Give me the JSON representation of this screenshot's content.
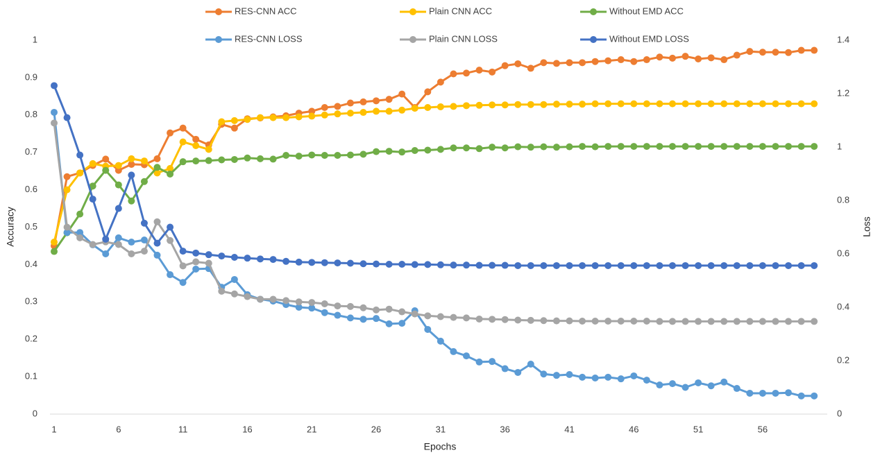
{
  "chart_data": {
    "type": "line",
    "xlabel": "Epochs",
    "ylabel": "Accuracy",
    "y2label": "Loss",
    "x": [
      1,
      2,
      3,
      4,
      5,
      6,
      7,
      8,
      9,
      10,
      11,
      12,
      13,
      14,
      15,
      16,
      17,
      18,
      19,
      20,
      21,
      22,
      23,
      24,
      25,
      26,
      27,
      28,
      29,
      30,
      31,
      32,
      33,
      34,
      35,
      36,
      37,
      38,
      39,
      40,
      41,
      42,
      43,
      44,
      45,
      46,
      47,
      48,
      49,
      50,
      51,
      52,
      53,
      54,
      55,
      56,
      57,
      58,
      59,
      60
    ],
    "xlim": [
      1,
      60.8
    ],
    "xticks": [
      1,
      6,
      11,
      16,
      21,
      26,
      31,
      36,
      41,
      46,
      51,
      56
    ],
    "ylim": [
      0,
      1
    ],
    "yticks": [
      0,
      0.1,
      0.2,
      0.3,
      0.4,
      0.5,
      0.6,
      0.7,
      0.8,
      0.9,
      1
    ],
    "y2lim": [
      0,
      1.4
    ],
    "y2ticks": [
      0,
      0.2,
      0.4,
      0.6,
      0.8,
      1,
      1.2,
      1.4
    ],
    "grid": false,
    "legend": "top",
    "series": [
      {
        "name": "RES-CNN ACC",
        "color": "#ED7D31",
        "values": [
          0.45,
          0.635,
          0.645,
          0.665,
          0.682,
          0.652,
          0.668,
          0.667,
          0.683,
          0.752,
          0.765,
          0.735,
          0.72,
          0.775,
          0.765,
          0.79,
          0.792,
          0.795,
          0.798,
          0.805,
          0.81,
          0.82,
          0.823,
          0.832,
          0.835,
          0.838,
          0.842,
          0.856,
          0.82,
          0.862,
          0.888,
          0.91,
          0.912,
          0.92,
          0.915,
          0.932,
          0.937,
          0.925,
          0.94,
          0.938,
          0.94,
          0.94,
          0.943,
          0.945,
          0.948,
          0.943,
          0.948,
          0.955,
          0.952,
          0.957,
          0.95,
          0.953,
          0.948,
          0.96,
          0.97,
          0.968,
          0.968,
          0.967,
          0.973,
          0.973
        ]
      },
      {
        "name": "Plain CNN ACC",
        "color": "#FFC000",
        "values": [
          0.46,
          0.6,
          0.645,
          0.67,
          0.663,
          0.665,
          0.683,
          0.677,
          0.645,
          0.657,
          0.728,
          0.718,
          0.708,
          0.782,
          0.785,
          0.788,
          0.793,
          0.793,
          0.793,
          0.795,
          0.797,
          0.8,
          0.803,
          0.805,
          0.807,
          0.81,
          0.81,
          0.813,
          0.818,
          0.82,
          0.822,
          0.823,
          0.825,
          0.826,
          0.827,
          0.827,
          0.828,
          0.828,
          0.828,
          0.829,
          0.829,
          0.829,
          0.83,
          0.83,
          0.83,
          0.83,
          0.83,
          0.83,
          0.83,
          0.83,
          0.83,
          0.83,
          0.83,
          0.83,
          0.83,
          0.83,
          0.83,
          0.83,
          0.83,
          0.83
        ]
      },
      {
        "name": "Without EMD ACC",
        "color": "#70AD47",
        "values": [
          0.435,
          0.485,
          0.535,
          0.61,
          0.652,
          0.613,
          0.57,
          0.622,
          0.66,
          0.642,
          0.675,
          0.677,
          0.678,
          0.68,
          0.681,
          0.685,
          0.683,
          0.682,
          0.692,
          0.69,
          0.693,
          0.692,
          0.692,
          0.693,
          0.695,
          0.702,
          0.703,
          0.701,
          0.705,
          0.706,
          0.708,
          0.712,
          0.712,
          0.71,
          0.714,
          0.712,
          0.715,
          0.714,
          0.715,
          0.714,
          0.715,
          0.716,
          0.715,
          0.716,
          0.716,
          0.716,
          0.716,
          0.716,
          0.716,
          0.716,
          0.716,
          0.716,
          0.716,
          0.716,
          0.716,
          0.716,
          0.716,
          0.716,
          0.716,
          0.716
        ]
      },
      {
        "name": "RES-CNN LOSS",
        "color": "#5B9BD5",
        "axis": "y2",
        "values": [
          1.13,
          0.68,
          0.68,
          0.634,
          0.6,
          0.66,
          0.644,
          0.652,
          0.595,
          0.522,
          0.493,
          0.543,
          0.545,
          0.475,
          0.504,
          0.447,
          0.43,
          0.423,
          0.41,
          0.4,
          0.397,
          0.38,
          0.37,
          0.36,
          0.355,
          0.358,
          0.338,
          0.34,
          0.387,
          0.317,
          0.273,
          0.234,
          0.218,
          0.195,
          0.197,
          0.17,
          0.156,
          0.187,
          0.15,
          0.145,
          0.148,
          0.138,
          0.135,
          0.138,
          0.132,
          0.143,
          0.127,
          0.109,
          0.114,
          0.1,
          0.117,
          0.106,
          0.12,
          0.096,
          0.078,
          0.078,
          0.078,
          0.08,
          0.068,
          0.068
        ]
      },
      {
        "name": "Plain CNN LOSS",
        "color": "#A5A5A5",
        "axis": "y2",
        "values": [
          1.09,
          0.7,
          0.66,
          0.635,
          0.645,
          0.635,
          0.6,
          0.61,
          0.72,
          0.65,
          0.555,
          0.57,
          0.565,
          0.46,
          0.45,
          0.44,
          0.43,
          0.43,
          0.425,
          0.42,
          0.418,
          0.413,
          0.405,
          0.403,
          0.398,
          0.39,
          0.393,
          0.383,
          0.375,
          0.368,
          0.365,
          0.362,
          0.36,
          0.356,
          0.355,
          0.354,
          0.352,
          0.351,
          0.35,
          0.349,
          0.349,
          0.348,
          0.348,
          0.348,
          0.348,
          0.348,
          0.348,
          0.347,
          0.347,
          0.347,
          0.347,
          0.347,
          0.347,
          0.347,
          0.347,
          0.347,
          0.347,
          0.347,
          0.347,
          0.347
        ]
      },
      {
        "name": "Without EMD LOSS",
        "color": "#4472C4",
        "axis": "y2",
        "values": [
          1.23,
          1.11,
          0.97,
          0.805,
          0.655,
          0.77,
          0.895,
          0.715,
          0.64,
          0.7,
          0.61,
          0.603,
          0.597,
          0.592,
          0.587,
          0.584,
          0.581,
          0.579,
          0.572,
          0.569,
          0.568,
          0.567,
          0.566,
          0.565,
          0.563,
          0.562,
          0.561,
          0.561,
          0.56,
          0.56,
          0.559,
          0.558,
          0.558,
          0.557,
          0.557,
          0.557,
          0.556,
          0.556,
          0.556,
          0.556,
          0.556,
          0.556,
          0.556,
          0.556,
          0.556,
          0.556,
          0.556,
          0.556,
          0.556,
          0.556,
          0.556,
          0.556,
          0.556,
          0.556,
          0.556,
          0.556,
          0.556,
          0.556,
          0.556,
          0.556
        ]
      }
    ]
  }
}
